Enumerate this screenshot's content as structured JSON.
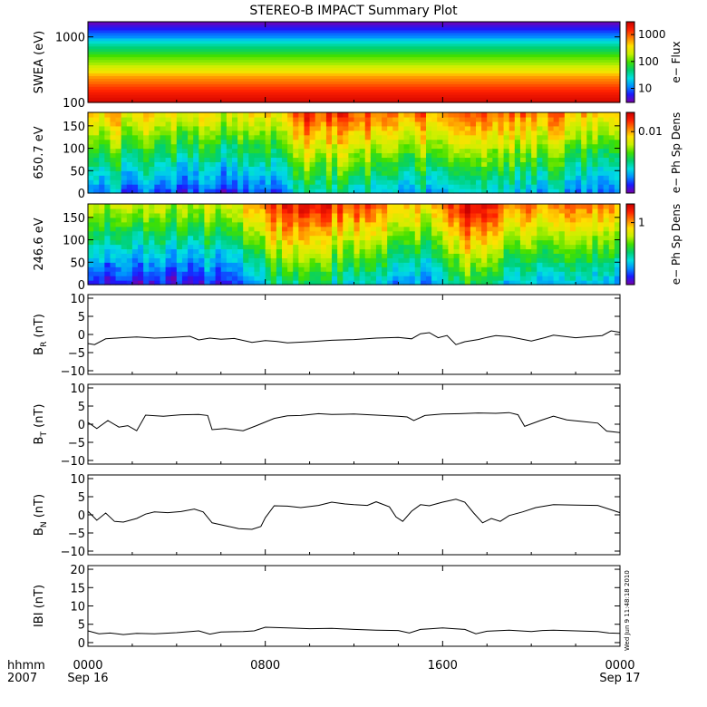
{
  "title": "STEREO-B IMPACT Summary Plot",
  "stamp": "Wed Jun  9 11:48:18 2010",
  "time_axis": {
    "row1_label": "hhmm",
    "row2_label": "2007",
    "ticks": [
      {
        "time": "0000",
        "date": "Sep 16",
        "hour": 0
      },
      {
        "time": "0800",
        "date": "",
        "hour": 8
      },
      {
        "time": "1600",
        "date": "",
        "hour": 16
      },
      {
        "time": "0000",
        "date": "Sep 17",
        "hour": 24
      }
    ],
    "range_hours": [
      0,
      24
    ]
  },
  "colors": {
    "line": "#000000",
    "spectrum": [
      "#7a00a8",
      "#1a1aff",
      "#0090ff",
      "#00e0e0",
      "#00d070",
      "#40e000",
      "#c8f000",
      "#ffe000",
      "#ff8000",
      "#ff2000",
      "#c80000"
    ]
  },
  "chart_data": [
    {
      "type": "heatmap",
      "ylabel": "SWEA (eV)",
      "ylog": true,
      "ylim": [
        100,
        1700
      ],
      "yticks": [
        {
          "v": 100,
          "label": "100"
        },
        {
          "v": 1000,
          "label": "1000"
        }
      ],
      "colorbar": {
        "label": "e− Flux",
        "log": true,
        "range": [
          3,
          3000
        ],
        "ticks": [
          {
            "v": 10,
            "label": "10"
          },
          {
            "v": 100,
            "label": "100"
          },
          {
            "v": 1000,
            "label": "1000"
          }
        ]
      },
      "profile_by_energy_eV": [
        [
          100,
          2500
        ],
        [
          150,
          1500
        ],
        [
          200,
          900
        ],
        [
          300,
          300
        ],
        [
          400,
          150
        ],
        [
          600,
          60
        ],
        [
          800,
          30
        ],
        [
          1000,
          12
        ],
        [
          1300,
          6
        ],
        [
          1700,
          3
        ]
      ]
    },
    {
      "type": "heatmap",
      "ylabel": "650.7 eV",
      "ylim": [
        0,
        180
      ],
      "yticks": [
        {
          "v": 0,
          "label": "0"
        },
        {
          "v": 50,
          "label": "50"
        },
        {
          "v": 100,
          "label": "100"
        },
        {
          "v": 150,
          "label": "150"
        }
      ],
      "colorbar": {
        "label": "e− Ph Sp Dens",
        "log": true,
        "range": [
          0.0003,
          0.03
        ],
        "ticks": [
          {
            "v": 0.01,
            "label": "0.01"
          }
        ]
      },
      "field_description": "pitch-angle distribution 0-180 deg vs time; stronger near 180 deg, intensification mid-day",
      "level_by_hour": [
        [
          0,
          0.55
        ],
        [
          4,
          0.5
        ],
        [
          6,
          0.45
        ],
        [
          9,
          0.55
        ],
        [
          10,
          0.7
        ],
        [
          13,
          0.65
        ],
        [
          15,
          0.6
        ],
        [
          17,
          0.72
        ],
        [
          20,
          0.6
        ],
        [
          24,
          0.55
        ]
      ]
    },
    {
      "type": "heatmap",
      "ylabel": "246.6 eV",
      "ylim": [
        0,
        180
      ],
      "yticks": [
        {
          "v": 0,
          "label": "0"
        },
        {
          "v": 50,
          "label": "50"
        },
        {
          "v": 100,
          "label": "100"
        },
        {
          "v": 150,
          "label": "150"
        }
      ],
      "colorbar": {
        "label": "e− Ph Sp Dens",
        "log": true,
        "range": [
          0.1,
          2
        ],
        "ticks": [
          {
            "v": 1,
            "label": "1"
          }
        ]
      },
      "field_description": "pitch-angle distribution 0-180 deg vs time; strong beam near 180 deg after 0730 and 1630-1800",
      "level_by_hour": [
        [
          0,
          0.45
        ],
        [
          3,
          0.4
        ],
        [
          6,
          0.45
        ],
        [
          7.5,
          0.6
        ],
        [
          9,
          0.75
        ],
        [
          13,
          0.65
        ],
        [
          15.5,
          0.5
        ],
        [
          17,
          0.8
        ],
        [
          19,
          0.65
        ],
        [
          24,
          0.55
        ]
      ]
    },
    {
      "type": "line",
      "ylabel": "B",
      "ylabel_sub": "R",
      "ylabel_unit": "(nT)",
      "ylim": [
        -11,
        11
      ],
      "yticks": [
        {
          "v": -10,
          "label": "−10"
        },
        {
          "v": -5,
          "label": "−5"
        },
        {
          "v": 0,
          "label": "0"
        },
        {
          "v": 5,
          "label": "5"
        },
        {
          "v": 10,
          "label": "10"
        }
      ],
      "x": [
        0,
        0.3,
        0.8,
        1.5,
        2.2,
        3,
        3.8,
        4.6,
        5,
        5.5,
        6,
        6.6,
        7.4,
        8,
        8.5,
        9,
        10,
        11,
        12,
        13,
        14,
        14.6,
        15,
        15.4,
        15.8,
        16.2,
        16.6,
        17,
        17.6,
        18,
        18.4,
        19,
        20,
        20.6,
        21,
        22,
        22.6,
        23.2,
        23.6,
        24
      ],
      "y": [
        -2.5,
        -2.8,
        -1.2,
        -0.9,
        -0.7,
        -1.0,
        -0.8,
        -0.5,
        -1.5,
        -1.0,
        -1.3,
        -1.1,
        -2.2,
        -1.7,
        -1.9,
        -2.3,
        -2.0,
        -1.6,
        -1.4,
        -1.0,
        -0.8,
        -1.2,
        0.2,
        0.5,
        -0.9,
        -0.3,
        -2.8,
        -2.0,
        -1.4,
        -0.8,
        -0.3,
        -0.6,
        -1.8,
        -0.9,
        -0.2,
        -0.9,
        -0.6,
        -0.3,
        1.0,
        0.6
      ]
    },
    {
      "type": "line",
      "ylabel": "B",
      "ylabel_sub": "T",
      "ylabel_unit": "(nT)",
      "ylim": [
        -11,
        11
      ],
      "yticks": [
        {
          "v": -10,
          "label": "−10"
        },
        {
          "v": -5,
          "label": "−5"
        },
        {
          "v": 0,
          "label": "0"
        },
        {
          "v": 5,
          "label": "5"
        },
        {
          "v": 10,
          "label": "10"
        }
      ],
      "x": [
        0,
        0.4,
        0.9,
        1.4,
        1.8,
        2.2,
        2.6,
        3.4,
        4.2,
        5,
        5.4,
        5.6,
        6.2,
        7,
        7.6,
        8,
        8.4,
        9,
        9.6,
        10.4,
        11,
        12,
        13,
        14,
        14.4,
        14.7,
        15.2,
        16,
        16.8,
        17.6,
        18.4,
        19,
        19.4,
        19.7,
        20.4,
        21,
        21.6,
        22.2,
        23,
        23.4,
        24
      ],
      "y": [
        0.5,
        -1.2,
        1.0,
        -0.8,
        -0.4,
        -1.8,
        2.5,
        2.2,
        2.6,
        2.7,
        2.4,
        -1.5,
        -1.2,
        -1.8,
        -0.4,
        0.6,
        1.6,
        2.3,
        2.4,
        2.9,
        2.7,
        2.8,
        2.5,
        2.2,
        2.0,
        1.0,
        2.4,
        2.8,
        2.9,
        3.1,
        3.0,
        3.2,
        2.6,
        -0.6,
        1.0,
        2.2,
        1.2,
        0.8,
        0.3,
        -1.9,
        -2.3
      ]
    },
    {
      "type": "line",
      "ylabel": "B",
      "ylabel_sub": "N",
      "ylabel_unit": "(nT)",
      "ylim": [
        -11,
        11
      ],
      "yticks": [
        {
          "v": -10,
          "label": "−10"
        },
        {
          "v": -5,
          "label": "−5"
        },
        {
          "v": 0,
          "label": "0"
        },
        {
          "v": 5,
          "label": "5"
        },
        {
          "v": 10,
          "label": "10"
        }
      ],
      "x": [
        0,
        0.4,
        0.8,
        1.2,
        1.6,
        2.2,
        2.6,
        3,
        3.6,
        4.2,
        4.8,
        5.2,
        5.6,
        6.2,
        6.8,
        7.4,
        7.8,
        8,
        8.4,
        9,
        9.6,
        10.4,
        11,
        11.6,
        12,
        12.6,
        13,
        13.6,
        13.9,
        14.2,
        14.6,
        15,
        15.4,
        16,
        16.6,
        17,
        17.4,
        17.8,
        18.2,
        18.6,
        19,
        19.6,
        20.2,
        21,
        22,
        23,
        24
      ],
      "y": [
        1.0,
        -1.5,
        0.5,
        -1.8,
        -2.0,
        -1.0,
        0.2,
        0.8,
        0.6,
        0.9,
        1.6,
        0.8,
        -2.2,
        -3.0,
        -3.8,
        -4.0,
        -3.2,
        -0.8,
        2.5,
        2.4,
        2.0,
        2.6,
        3.5,
        3.0,
        2.8,
        2.6,
        3.6,
        2.2,
        -0.6,
        -1.8,
        1.0,
        2.8,
        2.5,
        3.5,
        4.3,
        3.5,
        0.5,
        -2.2,
        -1.0,
        -1.8,
        -0.2,
        0.8,
        2.0,
        2.8,
        2.7,
        2.6,
        0.6
      ]
    },
    {
      "type": "line",
      "ylabel": "IBI",
      "ylabel_sub": "",
      "ylabel_unit": "(nT)",
      "ylim": [
        -1,
        21
      ],
      "yticks": [
        {
          "v": 0,
          "label": "0"
        },
        {
          "v": 5,
          "label": "5"
        },
        {
          "v": 10,
          "label": "10"
        },
        {
          "v": 15,
          "label": "15"
        },
        {
          "v": 20,
          "label": "20"
        }
      ],
      "x": [
        0,
        0.5,
        1,
        1.6,
        2.2,
        3,
        4,
        5,
        5.5,
        6,
        7,
        7.5,
        8,
        9,
        10,
        11,
        12,
        13,
        14,
        14.5,
        15,
        15.5,
        16,
        16.5,
        17,
        17.5,
        18,
        19,
        20,
        20.5,
        21,
        22,
        23,
        23.5,
        24
      ],
      "y": [
        3.2,
        2.4,
        2.6,
        2.2,
        2.5,
        2.4,
        2.7,
        3.2,
        2.3,
        2.9,
        3.0,
        3.2,
        4.2,
        4.0,
        3.8,
        3.9,
        3.6,
        3.4,
        3.3,
        2.6,
        3.6,
        3.8,
        4.0,
        3.8,
        3.6,
        2.4,
        3.1,
        3.4,
        3.0,
        3.3,
        3.4,
        3.2,
        3.0,
        2.6,
        2.5
      ]
    }
  ]
}
